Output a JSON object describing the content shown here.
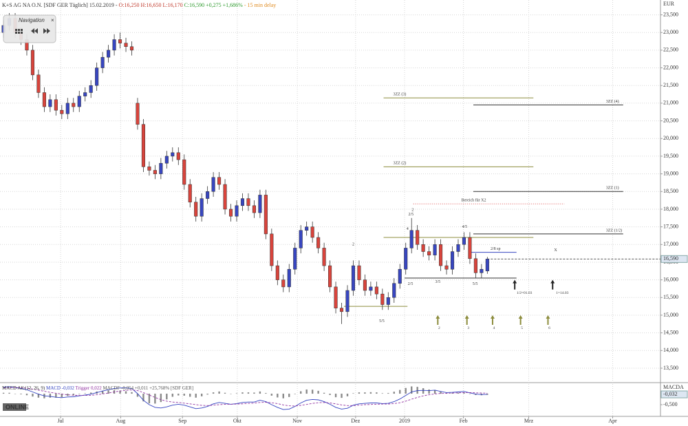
{
  "ui": {
    "navigation": "Navigation",
    "logo": "ONLINE"
  },
  "chart_data": {
    "type": "candlestick",
    "header": {
      "title": "K+S AG NA O.N. [SDF GER Täglich] 15.02.2019 -",
      "ohlc": "O:16,250 H:16,650 L:16,170",
      "change": "C:16,590 +0,275 +1,686%",
      "delay": "- 15 min delay"
    },
    "currency": "EUR",
    "up_color": "#3846c0",
    "down_color": "#d8443c",
    "open": [
      23000,
      23200,
      23400,
      23000,
      22800,
      22500,
      21800,
      21300,
      20900,
      21100,
      20800,
      20700,
      21000,
      20900,
      21200,
      21300,
      21500,
      22000,
      22300,
      22500,
      22800,
      22700,
      22600,
      21000,
      20400,
      19200,
      19100,
      19000,
      19300,
      19500,
      19600,
      19400,
      18700,
      18200,
      17800,
      18300,
      18500,
      18900,
      18700,
      18000,
      17800,
      18100,
      18300,
      18100,
      17900,
      18400,
      17300,
      16400,
      16000,
      15800,
      16300,
      16900,
      17400,
      17500,
      17200,
      16900,
      16400,
      15800,
      15200,
      15100,
      15700,
      16400,
      16000,
      15700,
      15800,
      15600,
      15300,
      15500,
      15900,
      16300,
      16900,
      17400,
      17000,
      16800,
      16700,
      17000,
      16400,
      16300,
      16800,
      17000,
      17200,
      16600,
      16200,
      16250
    ],
    "high": [
      23350,
      23550,
      23550,
      23150,
      22950,
      22650,
      21950,
      21450,
      21250,
      21250,
      20950,
      21150,
      21150,
      21350,
      21450,
      21650,
      22150,
      22450,
      22650,
      22950,
      23000,
      22850,
      22750,
      21150,
      20550,
      19350,
      19250,
      19450,
      19650,
      19750,
      19750,
      19550,
      18850,
      18350,
      18450,
      18650,
      19050,
      19050,
      18850,
      18150,
      18250,
      18450,
      18450,
      18250,
      18550,
      18550,
      17450,
      16550,
      16150,
      16450,
      17050,
      17550,
      17650,
      17650,
      17350,
      17050,
      16550,
      15950,
      15350,
      15850,
      16550,
      16550,
      16150,
      15950,
      15950,
      15750,
      15650,
      16050,
      16450,
      17050,
      17750,
      17550,
      17150,
      16950,
      17150,
      17150,
      16550,
      16950,
      17150,
      17350,
      17350,
      16750,
      16450,
      16650
    ],
    "low": [
      22850,
      23050,
      22850,
      22650,
      22350,
      21650,
      21150,
      20750,
      20750,
      20650,
      20550,
      20550,
      20750,
      20750,
      21050,
      21150,
      21350,
      21850,
      22150,
      22350,
      22550,
      22450,
      22350,
      20250,
      19050,
      18950,
      18850,
      18850,
      19150,
      19350,
      19250,
      18550,
      18050,
      17650,
      17650,
      18150,
      18350,
      18550,
      17850,
      17650,
      17650,
      17950,
      17950,
      17750,
      17750,
      17150,
      16250,
      15850,
      15650,
      15650,
      16150,
      16750,
      17250,
      17050,
      16750,
      16250,
      15650,
      15050,
      14750,
      14950,
      15550,
      15850,
      15550,
      15550,
      15450,
      15150,
      15150,
      15350,
      15750,
      16150,
      16750,
      16850,
      16650,
      16550,
      16550,
      16250,
      16150,
      16150,
      16650,
      16850,
      16450,
      16050,
      16050,
      16170
    ],
    "close": [
      23200,
      23400,
      23000,
      22800,
      22500,
      21800,
      21300,
      20900,
      21100,
      20800,
      20700,
      21000,
      20900,
      21200,
      21300,
      21500,
      22000,
      22300,
      22500,
      22800,
      22700,
      22600,
      22500,
      20400,
      19200,
      19100,
      19000,
      19300,
      19500,
      19600,
      19400,
      18700,
      18200,
      17800,
      18300,
      18500,
      18900,
      18700,
      18000,
      17800,
      18100,
      18300,
      18100,
      17900,
      18400,
      17300,
      16400,
      16000,
      15800,
      16300,
      16900,
      17400,
      17500,
      17200,
      16900,
      16400,
      15800,
      15200,
      15100,
      15700,
      16400,
      16000,
      15700,
      15800,
      15600,
      15300,
      15500,
      15900,
      16300,
      16900,
      17400,
      17000,
      16800,
      16700,
      17000,
      16400,
      16300,
      16800,
      17000,
      17200,
      16600,
      16200,
      16300,
      16590
    ],
    "xlim": [
      -0.6,
      112.7
    ],
    "xticks": [
      {
        "value": 9.8,
        "label": "Jul"
      },
      {
        "value": 20.1,
        "label": "Aug"
      },
      {
        "value": 30.7,
        "label": "Sep"
      },
      {
        "value": 40.1,
        "label": "Okt"
      },
      {
        "value": 50.4,
        "label": "Nov"
      },
      {
        "value": 60.4,
        "label": "Dez"
      },
      {
        "value": 68.8,
        "label": "2019"
      },
      {
        "value": 78.9,
        "label": "Feb"
      },
      {
        "value": 90.1,
        "label": "Mrz"
      },
      {
        "value": 104.5,
        "label": "Apr"
      }
    ],
    "ylim": [
      13110,
      23920
    ],
    "yticks": [
      {
        "value": 13500,
        "label": "13,500"
      },
      {
        "value": 14000,
        "label": "14,000"
      },
      {
        "value": 14500,
        "label": "14,500"
      },
      {
        "value": 15000,
        "label": "15,000"
      },
      {
        "value": 15500,
        "label": "15,500"
      },
      {
        "value": 16000,
        "label": "16,000"
      },
      {
        "value": 16500,
        "label": "16,500"
      },
      {
        "value": 17000,
        "label": "17,000"
      },
      {
        "value": 17500,
        "label": "17,500"
      },
      {
        "value": 18000,
        "label": "18,000"
      },
      {
        "value": 18500,
        "label": "18,500"
      },
      {
        "value": 19000,
        "label": "19,000"
      },
      {
        "value": 19500,
        "label": "19,500"
      },
      {
        "value": 20000,
        "label": "20,000"
      },
      {
        "value": 20500,
        "label": "20,500"
      },
      {
        "value": 21000,
        "label": "21,000"
      },
      {
        "value": 21500,
        "label": "21,500"
      },
      {
        "value": 22000,
        "label": "22,000"
      },
      {
        "value": 22500,
        "label": "22,500"
      },
      {
        "value": 23000,
        "label": "23,000"
      },
      {
        "value": 23500,
        "label": "23,500"
      }
    ],
    "grid": true,
    "last_price": {
      "value": 16590,
      "label": "16,590"
    },
    "levels": [
      {
        "value": 21150,
        "from": 65.2,
        "to": 90.9,
        "color": "#8c8c3c",
        "style": "solid",
        "label": "3ZZ (3)",
        "label_at": "start"
      },
      {
        "value": 19200,
        "from": 65.2,
        "to": 90.9,
        "color": "#8c8c3c",
        "style": "solid",
        "label": "3ZZ (2)",
        "label_at": "start"
      },
      {
        "value": 17200,
        "from": 65.2,
        "to": 90.9,
        "color": "#8c8c3c",
        "style": "solid"
      },
      {
        "value": 20950,
        "from": 80.6,
        "to": 106.3,
        "color": "#333333",
        "style": "solid",
        "label": "3ZZ (4)",
        "label_at": "end"
      },
      {
        "value": 18500,
        "from": 80.6,
        "to": 106.3,
        "color": "#333333",
        "style": "solid",
        "label": "3ZZ (1)",
        "label_at": "end"
      },
      {
        "value": 17300,
        "from": 80.6,
        "to": 106.3,
        "color": "#333333",
        "style": "solid",
        "label": "3ZZ (1/2)",
        "label_at": "end"
      },
      {
        "value": 18150,
        "from": 70.3,
        "to": 96.2,
        "color": "#e05050",
        "style": "dotted",
        "label": "Bereich für X2",
        "label_at": "middle"
      },
      {
        "value": 16050,
        "from": 68.8,
        "to": 88.0,
        "color": "#333333",
        "style": "solid"
      },
      {
        "value": 15250,
        "from": 58.4,
        "to": 69.3,
        "color": "#8c8c3c",
        "style": "solid"
      },
      {
        "value": 16780,
        "from": 80.0,
        "to": 88.0,
        "color": "#3846c0",
        "style": "solid"
      }
    ],
    "labels": [
      {
        "text": "2",
        "x": 60.0,
        "y": 17000,
        "color": "#3846c0"
      },
      {
        "text": "5/5",
        "x": 64.9,
        "y": 14830,
        "color": "#8c8c3c"
      },
      {
        "text": "2",
        "x": 70.2,
        "y": 17980,
        "color": "#3846c0"
      },
      {
        "text": "2/5",
        "x": 69.9,
        "y": 17850,
        "color": "#333333"
      },
      {
        "text": "4",
        "x": 69.3,
        "y": 17440,
        "color": "#3846c0"
      },
      {
        "text": "2/5",
        "x": 69.8,
        "y": 15880,
        "color": "#333333"
      },
      {
        "text": "3/5",
        "x": 74.5,
        "y": 15940,
        "color": "#333333"
      },
      {
        "text": "4/5",
        "x": 79.1,
        "y": 17500,
        "color": "#333333"
      },
      {
        "text": "5/5",
        "x": 80.9,
        "y": 15880,
        "color": "#333333"
      },
      {
        "text": "2/8 sp",
        "x": 84.4,
        "y": 16880,
        "color": "#3846c0"
      },
      {
        "text": "X",
        "x": 94.7,
        "y": 16840,
        "color": "#333333"
      }
    ],
    "arrows": [
      {
        "x": 74.5,
        "y": 15000,
        "label": "2",
        "color": "#8c8c3c"
      },
      {
        "x": 79.5,
        "y": 15000,
        "label": "3",
        "color": "#8c8c3c"
      },
      {
        "x": 83.9,
        "y": 15000,
        "label": "4",
        "color": "#8c8c3c"
      },
      {
        "x": 88.7,
        "y": 15000,
        "label": "5",
        "color": "#8c8c3c"
      },
      {
        "x": 93.4,
        "y": 15000,
        "label": "6",
        "color": "#8c8c3c"
      },
      {
        "x": 87.7,
        "y": 16000,
        "label": "1/2=01.03",
        "color": "#222222"
      },
      {
        "x": 94.2,
        "y": 16000,
        "label": "1=14.03",
        "color": "#222222"
      }
    ],
    "indicator": {
      "type": "macd",
      "title": "MACD All (12, 26, 9)",
      "macd_label": "MACD -0,032",
      "trigger_label": "Trigger 0,022",
      "macdf_label": "MACDF -0,054 +0,011 +25,768% [SDF GER]",
      "axis_title": "MACDA",
      "last": {
        "value": -0.032,
        "label": "-0,032"
      },
      "ylim": [
        -1.03,
        0.47
      ],
      "yticks": [
        {
          "value": -0.5,
          "label": "-0,500"
        }
      ],
      "macd_color": "#3040c0",
      "trigger_color": "#9030a0",
      "histogram_color": "#8a8a8a",
      "macd": [
        0.3,
        0.32,
        0.28,
        0.24,
        0.18,
        0.08,
        -0.02,
        -0.1,
        -0.12,
        -0.16,
        -0.18,
        -0.15,
        -0.14,
        -0.1,
        -0.06,
        -0.02,
        0.05,
        0.12,
        0.18,
        0.24,
        0.26,
        0.26,
        0.24,
        0.0,
        -0.3,
        -0.5,
        -0.62,
        -0.65,
        -0.6,
        -0.52,
        -0.48,
        -0.52,
        -0.6,
        -0.68,
        -0.65,
        -0.58,
        -0.46,
        -0.4,
        -0.44,
        -0.48,
        -0.45,
        -0.4,
        -0.38,
        -0.38,
        -0.3,
        -0.36,
        -0.5,
        -0.62,
        -0.72,
        -0.7,
        -0.58,
        -0.42,
        -0.3,
        -0.26,
        -0.28,
        -0.36,
        -0.48,
        -0.62,
        -0.7,
        -0.66,
        -0.52,
        -0.46,
        -0.44,
        -0.42,
        -0.42,
        -0.45,
        -0.44,
        -0.36,
        -0.24,
        -0.08,
        0.08,
        0.14,
        0.15,
        0.14,
        0.16,
        0.1,
        0.05,
        0.06,
        0.08,
        0.1,
        0.04,
        -0.02,
        -0.04,
        -0.032
      ],
      "trigger": [
        0.26,
        0.28,
        0.28,
        0.27,
        0.25,
        0.21,
        0.16,
        0.11,
        0.06,
        0.02,
        -0.02,
        -0.05,
        -0.07,
        -0.08,
        -0.08,
        -0.07,
        -0.05,
        -0.01,
        0.03,
        0.08,
        0.12,
        0.15,
        0.17,
        0.14,
        0.05,
        -0.06,
        -0.17,
        -0.27,
        -0.34,
        -0.38,
        -0.4,
        -0.43,
        -0.46,
        -0.5,
        -0.53,
        -0.54,
        -0.52,
        -0.5,
        -0.48,
        -0.48,
        -0.47,
        -0.46,
        -0.44,
        -0.43,
        -0.4,
        -0.39,
        -0.41,
        -0.45,
        -0.51,
        -0.55,
        -0.56,
        -0.53,
        -0.49,
        -0.44,
        -0.41,
        -0.4,
        -0.42,
        -0.46,
        -0.51,
        -0.54,
        -0.54,
        -0.52,
        -0.5,
        -0.49,
        -0.48,
        -0.47,
        -0.47,
        -0.45,
        -0.41,
        -0.34,
        -0.25,
        -0.17,
        -0.1,
        -0.05,
        -0.01,
        0.01,
        0.02,
        0.03,
        0.04,
        0.05,
        0.05,
        0.04,
        0.03,
        0.022
      ],
      "histogram": [
        0.04,
        0.04,
        0.0,
        -0.03,
        -0.07,
        -0.13,
        -0.18,
        -0.21,
        -0.18,
        -0.18,
        -0.16,
        -0.1,
        -0.07,
        -0.02,
        0.02,
        0.05,
        0.1,
        0.13,
        0.15,
        0.16,
        0.14,
        0.11,
        0.07,
        -0.14,
        -0.35,
        -0.44,
        -0.45,
        -0.38,
        -0.26,
        -0.14,
        -0.08,
        -0.09,
        -0.14,
        -0.18,
        -0.12,
        -0.04,
        0.06,
        0.1,
        0.04,
        0.0,
        0.02,
        0.06,
        0.06,
        0.05,
        0.1,
        0.03,
        -0.09,
        -0.17,
        -0.21,
        -0.15,
        -0.02,
        0.11,
        0.19,
        0.18,
        0.13,
        0.04,
        -0.06,
        -0.16,
        -0.19,
        -0.12,
        0.02,
        0.06,
        0.06,
        0.07,
        0.06,
        0.02,
        0.03,
        0.09,
        0.17,
        0.26,
        0.33,
        0.31,
        0.25,
        0.19,
        0.17,
        0.09,
        0.03,
        0.03,
        0.04,
        0.05,
        -0.01,
        -0.06,
        -0.07,
        -0.054
      ]
    }
  }
}
